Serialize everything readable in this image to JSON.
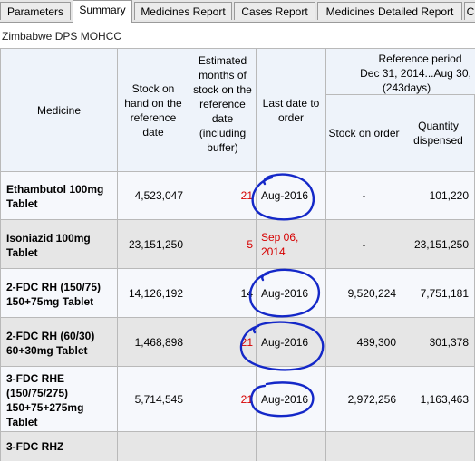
{
  "tabs": [
    {
      "label": "Parameters",
      "active": false
    },
    {
      "label": "Summary",
      "active": true
    },
    {
      "label": "Medicines Report",
      "active": false
    },
    {
      "label": "Cases Report",
      "active": false
    },
    {
      "label": "Medicines Detailed Report",
      "active": false
    },
    {
      "label": "C",
      "active": false
    }
  ],
  "subtitle": "Zimbabwe DPS MOHCC",
  "table": {
    "headers": {
      "medicine": "Medicine",
      "stock_on_hand": "Stock on hand on the reference date",
      "months": "Estimated months of stock on the reference date (including buffer)",
      "last_date": "Last date to order",
      "reference_period": "Reference period",
      "period_range": "Dec 31, 2014...Aug 30,",
      "period_days": "(243days)",
      "stock_on_order": "Stock on order",
      "qty_dispensed": "Quantity dispensed"
    },
    "rows": [
      {
        "medicine": "Ethambutol 100mg Tablet",
        "stock": "4,523,047",
        "months": "21",
        "last_date": "Aug-2016",
        "on_order": "-",
        "dispensed": "101,220"
      },
      {
        "medicine": "Isoniazid 100mg Tablet",
        "stock": "23,151,250",
        "months": "5",
        "last_date": "Sep 06, 2014",
        "on_order": "-",
        "dispensed": "23,151,250"
      },
      {
        "medicine": "2-FDC RH (150/75) 150+75mg Tablet",
        "stock": "14,126,192",
        "months": "14",
        "last_date": "Aug-2016",
        "on_order": "9,520,224",
        "dispensed": "7,751,181"
      },
      {
        "medicine": "2-FDC RH (60/30) 60+30mg Tablet",
        "stock": "1,468,898",
        "months": "21",
        "last_date": "Aug-2016",
        "on_order": "489,300",
        "dispensed": "301,378"
      },
      {
        "medicine": "3-FDC RHE (150/75/275) 150+75+275mg Tablet",
        "stock": "5,714,545",
        "months": "21",
        "last_date": "Aug-2016",
        "on_order": "2,972,256",
        "dispensed": "1,163,463"
      },
      {
        "medicine": "3-FDC RHZ",
        "stock": "",
        "months": "",
        "last_date": "",
        "on_order": "",
        "dispensed": ""
      }
    ]
  },
  "colors": {
    "warning_text": "#d60000",
    "annotation_ink": "#1428c8",
    "header_bg": "#eef3fa"
  }
}
